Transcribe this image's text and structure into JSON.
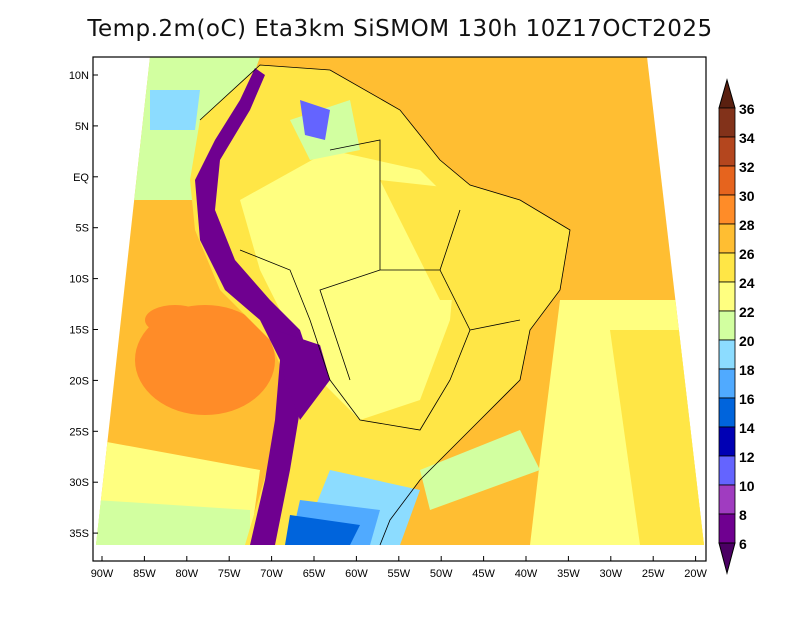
{
  "title": "Temp.2m(oC) Eta3km SiSMOM 130h 10Z17OCT2025",
  "map": {
    "lat_labels": [
      "10N",
      "5N",
      "EQ",
      "5S",
      "10S",
      "15S",
      "20S",
      "25S",
      "30S",
      "35S"
    ],
    "lon_labels": [
      "90W",
      "85W",
      "80W",
      "75W",
      "70W",
      "65W",
      "60W",
      "55W",
      "50W",
      "45W",
      "40W",
      "35W",
      "30W",
      "25W",
      "20W"
    ]
  },
  "colorbar": {
    "labels": [
      "36",
      "34",
      "32",
      "30",
      "28",
      "26",
      "24",
      "22",
      "20",
      "18",
      "16",
      "14",
      "12",
      "10",
      "8",
      "6"
    ],
    "colors": [
      "#82321a",
      "#b4461e",
      "#e6641e",
      "#ff8c28",
      "#ffbe32",
      "#ffe646",
      "#ffff80",
      "#d2ffa0",
      "#8cdcff",
      "#50aaff",
      "#0064dc",
      "#0000b4",
      "#6464ff",
      "#a03cc0",
      "#6f0090"
    ],
    "top_arrow_color": "#5a2010",
    "bottom_arrow_color": "#4b0064"
  }
}
